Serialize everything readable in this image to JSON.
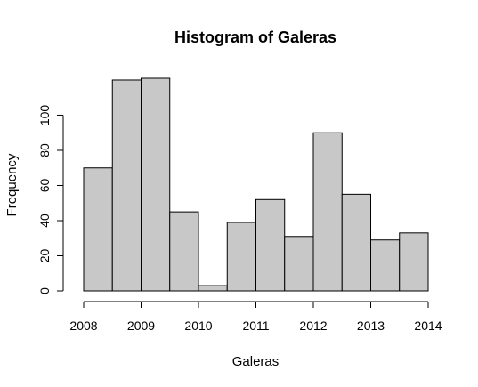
{
  "chart_data": {
    "type": "bar",
    "title": "Histogram of Galeras",
    "xlabel": "Galeras",
    "ylabel": "Frequency",
    "bin_edges": [
      2008,
      2008.5,
      2009,
      2009.5,
      2010,
      2010.5,
      2011,
      2011.5,
      2012,
      2012.5,
      2013,
      2013.5,
      2014
    ],
    "values": [
      70,
      120,
      121,
      45,
      3,
      39,
      52,
      31,
      90,
      55,
      29,
      33
    ],
    "xlim": [
      2008,
      2014
    ],
    "ylim": [
      0,
      121
    ],
    "x_ticks": [
      2008,
      2009,
      2010,
      2011,
      2012,
      2013,
      2014
    ],
    "x_tick_labels": [
      "2008",
      "2009",
      "2010",
      "2011",
      "2012",
      "2013",
      "2014"
    ],
    "y_ticks": [
      0,
      20,
      40,
      60,
      80,
      100
    ],
    "y_tick_labels": [
      "0",
      "20",
      "40",
      "60",
      "80",
      "100"
    ],
    "grid": false,
    "bar_color": "#c8c8c8",
    "edge_color": "#000000"
  }
}
